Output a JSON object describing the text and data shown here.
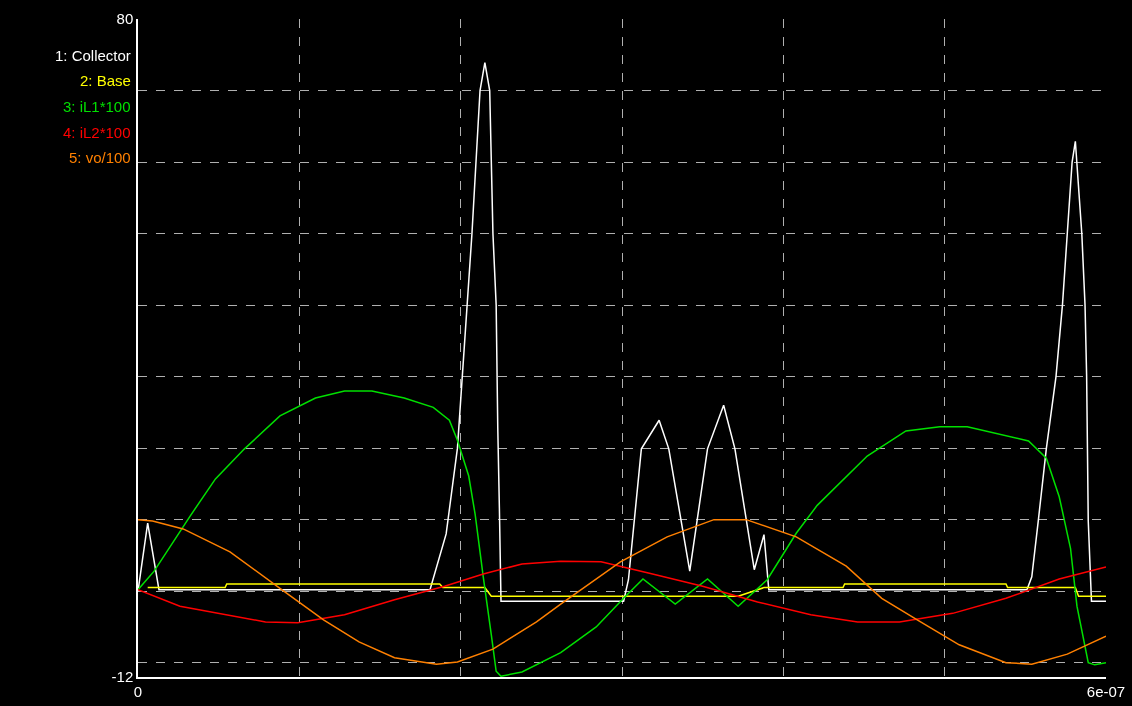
{
  "chart_data": {
    "type": "line",
    "legend": "top left",
    "grid": true,
    "line_style": "solid",
    "marker": "none",
    "xlim": [
      0,
      6e-07
    ],
    "xticks": [
      0,
      {
        "value": 1e-07,
        "label": null
      },
      {
        "value": 2e-07,
        "label": null
      },
      {
        "value": 3e-07,
        "label": null
      },
      {
        "value": 4e-07,
        "label": null
      },
      {
        "value": 5e-07,
        "label": null
      },
      {
        "value": 6e-07,
        "label": "6e-07"
      }
    ],
    "ylim": [
      -12,
      80
    ],
    "yticks": [
      -12,
      {
        "value": -10,
        "label": null
      },
      {
        "value": 0,
        "label": null
      },
      {
        "value": 10,
        "label": null
      },
      {
        "value": 20,
        "label": null
      },
      {
        "value": 30,
        "label": null
      },
      {
        "value": 40,
        "label": null
      },
      {
        "value": 50,
        "label": null
      },
      {
        "value": 60,
        "label": null
      },
      {
        "value": 70,
        "label": null
      },
      80
    ],
    "series": [
      {
        "name": "1: Collector",
        "color": "#ffffff",
        "x": [
          0,
          6e-09,
          1.3e-08,
          1.81e-07,
          1.91e-07,
          1.98e-07,
          2.04e-07,
          2.07e-07,
          2.12e-07,
          2.15e-07,
          2.18e-07,
          2.2e-07,
          2.22e-07,
          2.23e-07,
          2.24e-07,
          2.25e-07,
          3.01e-07,
          3.04e-07,
          3.12e-07,
          3.23e-07,
          3.29e-07,
          3.42e-07,
          3.53e-07,
          3.63e-07,
          3.7e-07,
          3.82e-07,
          3.88e-07,
          3.91e-07,
          5.51e-07,
          5.54e-07,
          5.58e-07,
          5.63e-07,
          5.69e-07,
          5.73e-07,
          5.76e-07,
          5.79e-07,
          5.81e-07,
          5.85e-07,
          5.87e-07,
          5.88e-07,
          5.89e-07,
          5.91e-07,
          6e-07
        ],
        "values": [
          0,
          9.5,
          0.2,
          0.2,
          8,
          20,
          40,
          50,
          70,
          73.9,
          70,
          50,
          40,
          22.8,
          11.6,
          -1.4,
          -1.4,
          1.6,
          19.9,
          23.9,
          19.9,
          2.8,
          19.9,
          26.0,
          19.9,
          3.0,
          7.9,
          0.2,
          0.2,
          2,
          9.8,
          19.9,
          30,
          40,
          50,
          60,
          62.9,
          50,
          40,
          30,
          9.8,
          -1.4,
          -1.4
        ]
      },
      {
        "name": "2: Base",
        "color": "#ffff00",
        "x": [
          6e-09,
          5.4e-08,
          5.5e-08,
          1.87e-07,
          1.89e-07,
          2.15e-07,
          2.19e-07,
          3.72e-07,
          3.88e-07,
          4.37e-07,
          4.38e-07,
          5.38e-07,
          5.39e-07,
          5.81e-07,
          5.83e-07,
          6e-07
        ],
        "values": [
          0.5,
          0.5,
          1,
          1,
          0.5,
          0.5,
          -0.7,
          -0.7,
          0.5,
          0.5,
          1,
          1,
          0.5,
          0.5,
          -0.7,
          -0.7
        ]
      },
      {
        "name": "3: iL1*100",
        "color": "#00e000",
        "x": [
          0,
          1e-08,
          3.2e-08,
          4.8e-08,
          6.6e-08,
          8.8e-08,
          1.1e-07,
          1.28e-07,
          1.45e-07,
          1.65e-07,
          1.83e-07,
          1.93e-07,
          1.98e-07,
          2.05e-07,
          2.09e-07,
          2.14e-07,
          2.19e-07,
          2.22e-07,
          2.25e-07,
          2.38e-07,
          2.62e-07,
          2.84e-07,
          3.01e-07,
          3.13e-07,
          3.33e-07,
          3.53e-07,
          3.72e-07,
          3.9e-07,
          4.08e-07,
          4.21e-07,
          4.52e-07,
          4.76e-07,
          4.97e-07,
          5.14e-07,
          5.52e-07,
          5.63e-07,
          5.71e-07,
          5.78e-07,
          5.82e-07,
          5.89e-07,
          5.93e-07,
          6e-07
        ],
        "values": [
          0.2,
          2.8,
          10.4,
          15.7,
          19.9,
          24.5,
          27.0,
          28.0,
          28.0,
          27.0,
          25.7,
          23.9,
          21.1,
          16.1,
          10.7,
          2.0,
          -6.1,
          -11.2,
          -11.9,
          -11.3,
          -8.6,
          -5.0,
          -1.0,
          1.7,
          -1.8,
          1.7,
          -2.1,
          1.6,
          8.1,
          12.0,
          18.9,
          22.4,
          23.0,
          23.0,
          21.0,
          18.6,
          13.2,
          6.0,
          -2.1,
          -10.0,
          -10.3,
          -10.0
        ]
      },
      {
        "name": "4: iL2*100",
        "color": "#ff0000",
        "x": [
          0,
          2.6e-08,
          7.9e-08,
          9.9e-08,
          1.28e-07,
          1.59e-07,
          1.9e-07,
          2.14e-07,
          2.38e-07,
          2.62e-07,
          2.87e-07,
          3.17e-07,
          3.5e-07,
          3.84e-07,
          4.17e-07,
          4.46e-07,
          4.72e-07,
          5.05e-07,
          5.38e-07,
          5.71e-07,
          6e-07
        ],
        "values": [
          0.2,
          -2.1,
          -4.3,
          -4.4,
          -3.3,
          -1.2,
          0.7,
          2.4,
          3.8,
          4.2,
          4.1,
          2.5,
          0.7,
          -1.5,
          -3.3,
          -4.3,
          -4.3,
          -3.1,
          -1.0,
          1.7,
          3.4
        ]
      },
      {
        "name": "5: vo/100",
        "color": "#ff8000",
        "x": [
          0,
          9e-09,
          2.8e-08,
          5.7e-08,
          8.8e-08,
          1.15e-07,
          1.37e-07,
          1.59e-07,
          1.85e-07,
          1.98e-07,
          2.2e-07,
          2.47e-07,
          2.62e-07,
          2.99e-07,
          3.28e-07,
          3.57e-07,
          3.77e-07,
          4.08e-07,
          4.39e-07,
          4.61e-07,
          4.83e-07,
          5.09e-07,
          5.38e-07,
          5.54e-07,
          5.76e-07,
          6e-07
        ],
        "values": [
          10.0,
          9.8,
          8.7,
          5.5,
          0.4,
          -4.0,
          -7.1,
          -9.3,
          -10.2,
          -9.9,
          -8.1,
          -4.3,
          -1.8,
          4.1,
          7.6,
          10.0,
          10.0,
          7.6,
          3.5,
          -1.0,
          -4.0,
          -7.5,
          -10.0,
          -10.2,
          -8.8,
          -6.3
        ]
      }
    ]
  }
}
